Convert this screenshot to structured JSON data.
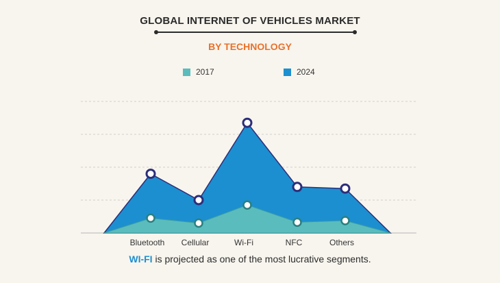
{
  "chart_data": {
    "type": "area",
    "title": "GLOBAL INTERNET OF VEHICLES MARKET",
    "subtitle": "BY TECHNOLOGY",
    "categories": [
      "Bluetooth",
      "Cellular",
      "Wi-Fi",
      "NFC",
      "Others"
    ],
    "series": [
      {
        "name": "2017",
        "color": "#5bbcbd",
        "values": [
          0.9,
          0.6,
          1.7,
          0.65,
          0.75
        ]
      },
      {
        "name": "2024",
        "color": "#1c8fd0",
        "values": [
          3.6,
          2.0,
          6.7,
          2.8,
          2.7
        ]
      }
    ],
    "ylim": [
      0,
      8
    ],
    "grid": true,
    "legend_position": "top-center",
    "colors": {
      "marker_outline": "#2c2e7a",
      "grid": "#cfcfcf",
      "axis": "#b5b5b5"
    }
  },
  "legend": [
    {
      "label": "2017",
      "color": "#5bbcbd"
    },
    {
      "label": "2024",
      "color": "#1c8fd0"
    }
  ],
  "footer": {
    "highlight": "WI-FI",
    "text": " is projected as one of the most lucrative segments."
  }
}
